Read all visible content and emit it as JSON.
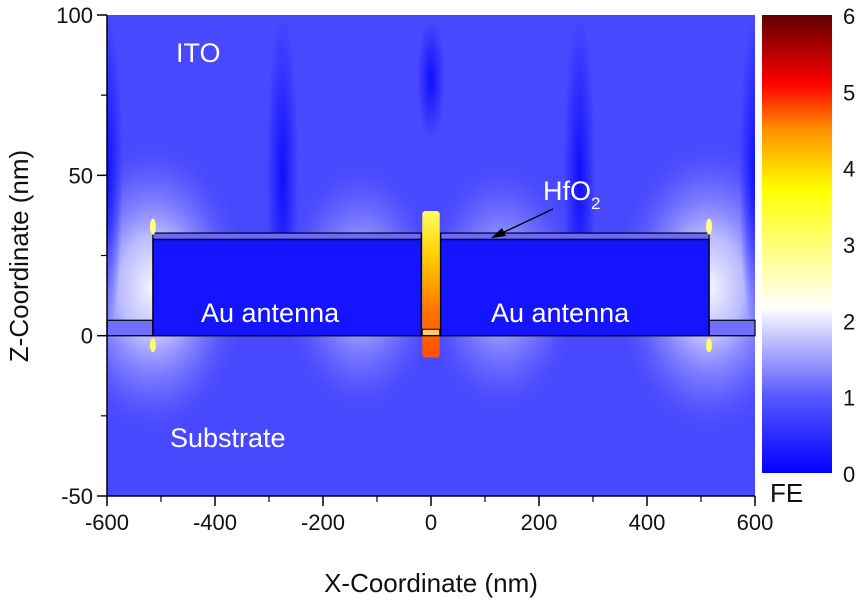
{
  "chart_data": {
    "type": "heatmap",
    "title": "",
    "xlabel": "X-Coordinate (nm)",
    "ylabel": "Z-Coordinate (nm)",
    "xlim": [
      -600,
      600
    ],
    "ylim": [
      -50,
      100
    ],
    "x_ticks": [
      -600,
      -400,
      -200,
      0,
      200,
      400,
      600
    ],
    "x_tick_labels": [
      "-600",
      "-400",
      "-200",
      "0",
      "200",
      "400",
      "600"
    ],
    "y_ticks": [
      -50,
      0,
      50,
      100
    ],
    "y_tick_labels": [
      "-50",
      "0",
      "50",
      "100"
    ],
    "colorbar": {
      "label": "FE",
      "range": [
        0,
        6
      ],
      "ticks": [
        0,
        1,
        2,
        3,
        4,
        5,
        6
      ],
      "tick_labels": [
        "0",
        "1",
        "2",
        "3",
        "4",
        "5",
        "6"
      ],
      "colors": [
        "#0000ff",
        "#5a5aff",
        "#c8c8ff",
        "#ffffff",
        "#ffff00",
        "#ff8000",
        "#ff0000",
        "#660000"
      ]
    },
    "regions": {
      "ito": "ITO",
      "substrate": "Substrate",
      "antenna_left": "Au antenna",
      "antenna_right": "Au antenna",
      "hfo2": "HfO",
      "hfo2_sub": "2"
    },
    "structures": {
      "antenna_left_x": [
        -515,
        -18
      ],
      "antenna_right_x": [
        18,
        515
      ],
      "antenna_z": [
        0,
        30
      ],
      "hfo2_z": [
        30,
        32
      ],
      "gap_center_x": 0,
      "hotspot_fe": 5.5
    }
  }
}
